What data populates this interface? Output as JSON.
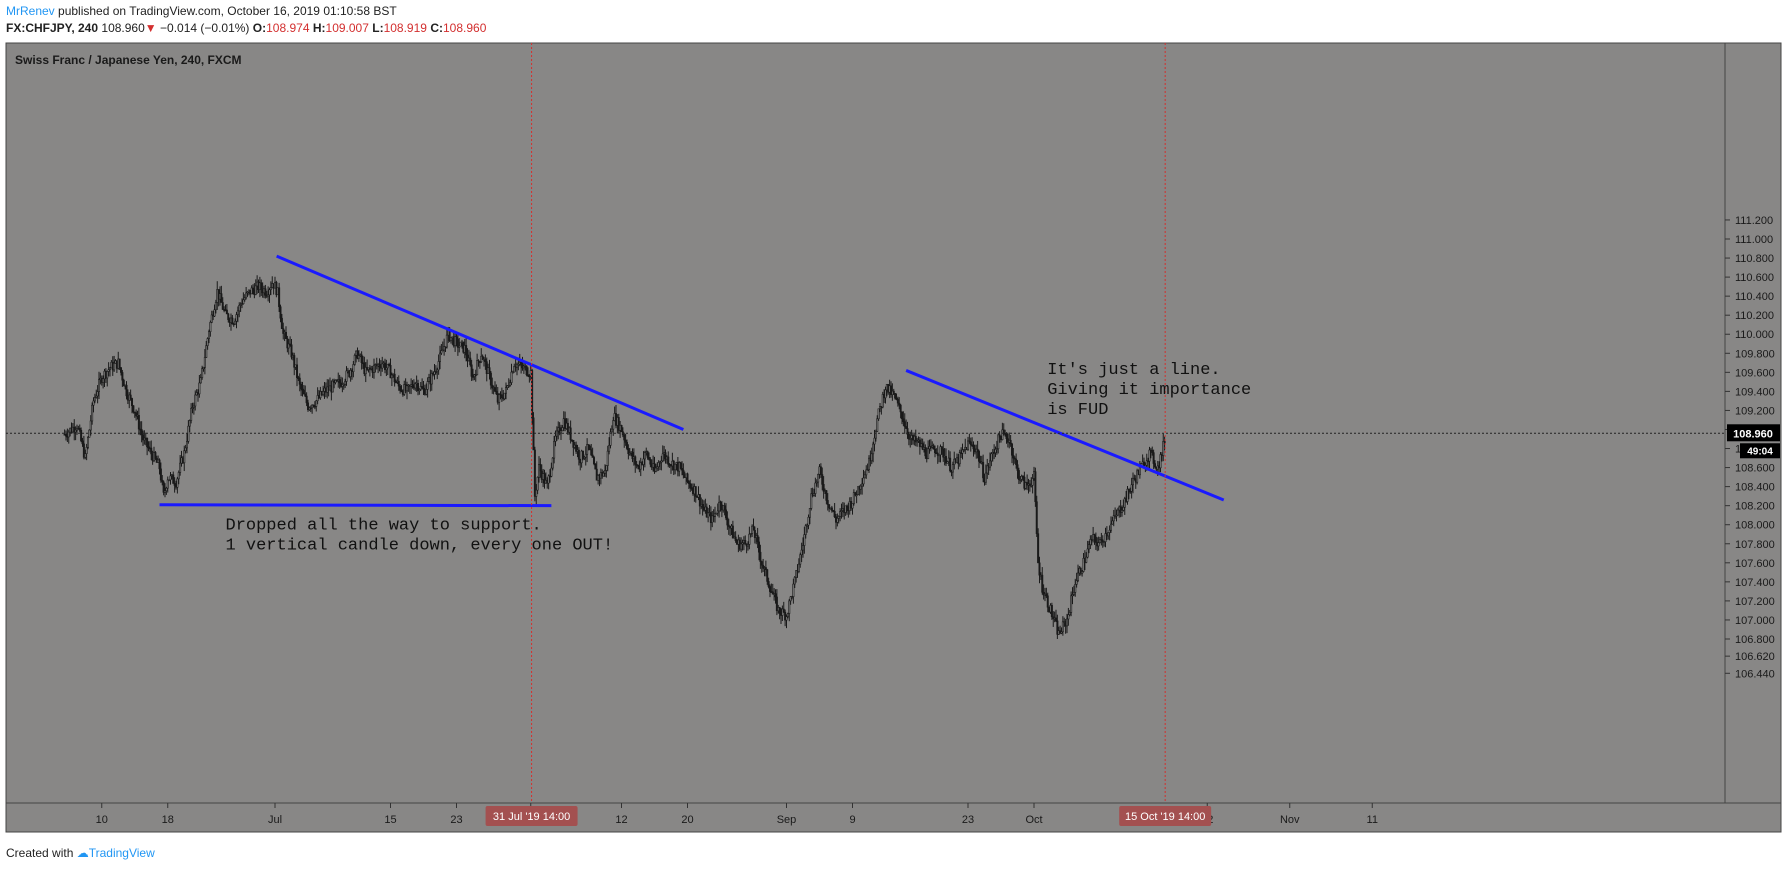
{
  "header": {
    "author": "MrRenev",
    "published_text": "published on TradingView.com, October 16, 2019 01:10:58 BST",
    "symbol": "FX:CHFJPY, 240",
    "last": "108.960",
    "arrow": "▼",
    "change": "−0.014 (−0.01%)",
    "open_label": "O:",
    "open": "108.974",
    "high_label": "H:",
    "high": "109.007",
    "low_label": "L:",
    "low": "108.919",
    "close_label": "C:",
    "close": "108.960"
  },
  "footer": {
    "created_with": "Created with",
    "brand": "TradingView"
  },
  "chart_data": {
    "type": "candlestick",
    "title": "Swiss Franc / Japanese Yen, 240, FXCM",
    "ylim": [
      106.3,
      111.35
    ],
    "y_ticks": [
      "111.200",
      "111.000",
      "110.800",
      "110.600",
      "110.400",
      "110.200",
      "110.000",
      "109.800",
      "109.600",
      "109.400",
      "109.200",
      "109.000",
      "108.800",
      "108.600",
      "108.400",
      "108.200",
      "108.000",
      "107.800",
      "107.600",
      "107.400",
      "107.200",
      "107.000",
      "106.800",
      "106.620",
      "106.440"
    ],
    "x_ticks": [
      {
        "label": "10",
        "day": -21
      },
      {
        "label": "18",
        "day": -13
      },
      {
        "label": "Jul",
        "day": 0
      },
      {
        "label": "15",
        "day": 14
      },
      {
        "label": "23",
        "day": 22
      },
      {
        "label": "Jul",
        "day": 31
      },
      {
        "label": "12",
        "day": 42
      },
      {
        "label": "20",
        "day": 50
      },
      {
        "label": "Sep",
        "day": 62
      },
      {
        "label": "9",
        "day": 70
      },
      {
        "label": "23",
        "day": 84
      },
      {
        "label": "Oct",
        "day": 92
      },
      {
        "label": "22",
        "day": 113
      },
      {
        "label": "Nov",
        "day": 123
      },
      {
        "label": "11",
        "day": 133
      }
    ],
    "day_origin": "2019-07-01",
    "price_series": [
      [
        -25.5,
        108.95
      ],
      [
        -24,
        109.05
      ],
      [
        -23,
        108.7
      ],
      [
        -22,
        109.3
      ],
      [
        -21,
        109.55
      ],
      [
        -20,
        109.65
      ],
      [
        -19,
        109.7
      ],
      [
        -18,
        109.4
      ],
      [
        -17,
        109.2
      ],
      [
        -16,
        108.9
      ],
      [
        -15,
        108.75
      ],
      [
        -14,
        108.6
      ],
      [
        -13.5,
        108.3
      ],
      [
        -13,
        108.5
      ],
      [
        -12,
        108.45
      ],
      [
        -11,
        108.75
      ],
      [
        -10,
        109.25
      ],
      [
        -9,
        109.5
      ],
      [
        -8,
        110.05
      ],
      [
        -7,
        110.45
      ],
      [
        -6,
        110.2
      ],
      [
        -5,
        110.15
      ],
      [
        -4,
        110.35
      ],
      [
        -3,
        110.45
      ],
      [
        -2,
        110.5
      ],
      [
        -1,
        110.45
      ],
      [
        -0.3,
        110.55
      ],
      [
        0.3,
        110.45
      ],
      [
        1,
        110.0
      ],
      [
        2,
        109.8
      ],
      [
        3,
        109.45
      ],
      [
        4,
        109.25
      ],
      [
        5,
        109.3
      ],
      [
        6,
        109.4
      ],
      [
        7,
        109.45
      ],
      [
        8,
        109.5
      ],
      [
        9,
        109.6
      ],
      [
        10,
        109.8
      ],
      [
        11,
        109.6
      ],
      [
        12,
        109.65
      ],
      [
        13,
        109.7
      ],
      [
        14,
        109.6
      ],
      [
        15,
        109.45
      ],
      [
        16,
        109.4
      ],
      [
        17,
        109.5
      ],
      [
        18,
        109.4
      ],
      [
        19,
        109.55
      ],
      [
        20,
        109.75
      ],
      [
        21,
        110.0
      ],
      [
        22,
        109.9
      ],
      [
        23,
        109.85
      ],
      [
        24,
        109.55
      ],
      [
        25,
        109.8
      ],
      [
        26,
        109.55
      ],
      [
        27,
        109.3
      ],
      [
        28,
        109.4
      ],
      [
        29,
        109.7
      ],
      [
        30,
        109.65
      ],
      [
        31,
        109.6
      ],
      [
        31.5,
        108.3
      ],
      [
        32,
        108.6
      ],
      [
        33,
        108.4
      ],
      [
        34,
        108.9
      ],
      [
        35,
        109.1
      ],
      [
        36,
        108.9
      ],
      [
        37,
        108.7
      ],
      [
        38,
        108.8
      ],
      [
        39,
        108.5
      ],
      [
        40,
        108.55
      ],
      [
        41,
        109.15
      ],
      [
        42,
        109.0
      ],
      [
        43,
        108.75
      ],
      [
        44,
        108.6
      ],
      [
        45,
        108.75
      ],
      [
        46,
        108.55
      ],
      [
        47,
        108.75
      ],
      [
        48,
        108.65
      ],
      [
        49,
        108.6
      ],
      [
        50,
        108.45
      ],
      [
        51,
        108.35
      ],
      [
        52,
        108.15
      ],
      [
        53,
        108.05
      ],
      [
        54,
        108.25
      ],
      [
        55,
        108.0
      ],
      [
        56,
        107.8
      ],
      [
        57,
        107.8
      ],
      [
        58,
        107.95
      ],
      [
        59,
        107.6
      ],
      [
        60,
        107.35
      ],
      [
        61,
        107.1
      ],
      [
        62,
        107.05
      ],
      [
        63,
        107.4
      ],
      [
        64,
        107.8
      ],
      [
        65,
        108.3
      ],
      [
        66,
        108.55
      ],
      [
        67,
        108.25
      ],
      [
        68,
        108.05
      ],
      [
        69,
        108.15
      ],
      [
        70,
        108.25
      ],
      [
        71,
        108.45
      ],
      [
        72,
        108.65
      ],
      [
        73,
        109.1
      ],
      [
        74,
        109.45
      ],
      [
        75,
        109.35
      ],
      [
        76,
        109.15
      ],
      [
        77,
        108.9
      ],
      [
        78,
        108.85
      ],
      [
        79,
        108.75
      ],
      [
        80,
        108.8
      ],
      [
        81,
        108.75
      ],
      [
        82,
        108.6
      ],
      [
        83,
        108.7
      ],
      [
        84,
        108.85
      ],
      [
        85,
        108.8
      ],
      [
        86,
        108.5
      ],
      [
        87,
        108.75
      ],
      [
        88,
        108.95
      ],
      [
        89,
        108.9
      ],
      [
        90,
        108.55
      ],
      [
        91,
        108.4
      ],
      [
        92,
        108.5
      ],
      [
        92.5,
        107.6
      ],
      [
        93,
        107.35
      ],
      [
        94,
        107.1
      ],
      [
        95,
        106.85
      ],
      [
        96,
        107.0
      ],
      [
        97,
        107.4
      ],
      [
        98,
        107.6
      ],
      [
        99,
        107.85
      ],
      [
        100,
        107.8
      ],
      [
        101,
        107.95
      ],
      [
        102,
        108.1
      ],
      [
        103,
        108.25
      ],
      [
        104,
        108.45
      ],
      [
        105,
        108.6
      ],
      [
        106,
        108.75
      ],
      [
        107,
        108.6
      ],
      [
        107.5,
        108.75
      ],
      [
        108,
        108.96
      ]
    ],
    "overlays": [
      {
        "kind": "line",
        "color": "#1a1aff",
        "x1": 0.2,
        "y1": 110.82,
        "x2": 49.5,
        "y2": 109.0
      },
      {
        "kind": "line",
        "color": "#1a1aff",
        "x1": -14,
        "y1": 108.21,
        "x2": 33.5,
        "y2": 108.2
      },
      {
        "kind": "line",
        "color": "#1a1aff",
        "x1": 76.5,
        "y1": 109.62,
        "x2": 115,
        "y2": 108.26
      }
    ],
    "vertical_markers": [
      {
        "day": 31.1,
        "label": "31 Jul '19   14:00"
      },
      {
        "day": 107.9,
        "label": "15 Oct '19   14:00"
      }
    ],
    "current_price": {
      "label": "108.960",
      "value": 108.96,
      "countdown": "49:04"
    },
    "annotations": [
      {
        "lines": [
          "Dropped all the way to support.",
          "1 vertical candle down, every one OUT!"
        ],
        "day": -6.0,
        "price": 107.95
      },
      {
        "lines": [
          "It's just a line.",
          "Giving it importance",
          "is FUD"
        ],
        "day": 93.6,
        "price": 109.58
      }
    ],
    "colors": {
      "background": "#888786",
      "candle": "#1a1a1a",
      "trendline": "#1a1aff",
      "marker": "#d32f2f",
      "axis_badge": "#a35050"
    }
  }
}
